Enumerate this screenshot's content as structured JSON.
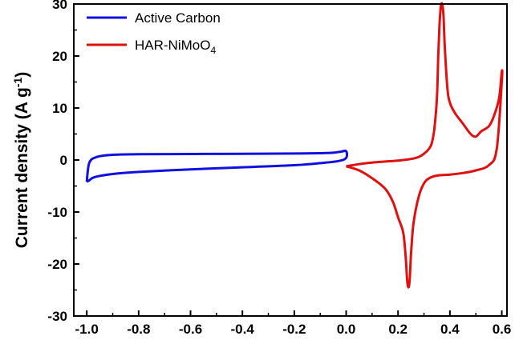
{
  "chart_data": {
    "type": "line",
    "xlabel": "",
    "ylabel": {
      "prefix": "Current density (A g",
      "superscript": "-1",
      "suffix": ")"
    },
    "xlim": [
      -1.05,
      0.62
    ],
    "ylim": [
      -30,
      30
    ],
    "x_ticks": [
      -1.0,
      -0.8,
      -0.6,
      -0.4,
      -0.2,
      0.0,
      0.2,
      0.4,
      0.6
    ],
    "x_tick_labels": [
      "-1.0",
      "-0.8",
      "-0.6",
      "-0.4",
      "-0.2",
      "0.0",
      "0.2",
      "0.4",
      "0.6"
    ],
    "y_ticks": [
      -30,
      -20,
      -10,
      0,
      10,
      20,
      30
    ],
    "y_tick_labels": [
      "-30",
      "-20",
      "-10",
      "0",
      "10",
      "20",
      "30"
    ],
    "grid": false,
    "legend_position": "top-left",
    "series": [
      {
        "name": "Active Carbon",
        "color": "#1010e0",
        "x": [
          -1.0,
          -0.99,
          -0.97,
          -0.9,
          -0.8,
          -0.6,
          -0.4,
          -0.2,
          -0.1,
          -0.03,
          0.0,
          0.0,
          -0.02,
          -0.05,
          -0.1,
          -0.2,
          -0.4,
          -0.6,
          -0.8,
          -0.9,
          -0.96,
          -0.99,
          -1.0
        ],
        "y": [
          -4.2,
          -3.9,
          -3.3,
          -2.7,
          -2.3,
          -1.8,
          -1.4,
          -1.0,
          -0.6,
          -0.2,
          0.4,
          1.7,
          1.6,
          1.4,
          1.3,
          1.25,
          1.2,
          1.15,
          1.1,
          1.0,
          0.6,
          -0.5,
          -4.2
        ]
      },
      {
        "name": {
          "main": "HAR-NiMoO",
          "sub": "4"
        },
        "color": "#e01010",
        "x": [
          0.0,
          0.05,
          0.1,
          0.15,
          0.2,
          0.25,
          0.28,
          0.3,
          0.32,
          0.33,
          0.34,
          0.35,
          0.355,
          0.36,
          0.365,
          0.37,
          0.375,
          0.38,
          0.39,
          0.4,
          0.42,
          0.45,
          0.48,
          0.5,
          0.52,
          0.55,
          0.57,
          0.59,
          0.6,
          0.6,
          0.58,
          0.55,
          0.5,
          0.45,
          0.4,
          0.35,
          0.32,
          0.3,
          0.28,
          0.26,
          0.25,
          0.245,
          0.24,
          0.235,
          0.23,
          0.22,
          0.2,
          0.18,
          0.15,
          0.1,
          0.05,
          0.0
        ],
        "y": [
          -1.2,
          -0.8,
          -0.5,
          -0.3,
          -0.1,
          0.2,
          0.6,
          1.2,
          2.2,
          3.2,
          6.0,
          12.0,
          20.0,
          26.0,
          29.5,
          30.0,
          28.0,
          22.0,
          14.0,
          11.0,
          9.0,
          7.0,
          5.0,
          4.5,
          5.5,
          6.5,
          8.5,
          12.0,
          17.0,
          15.0,
          2.0,
          -1.0,
          -2.0,
          -2.5,
          -2.8,
          -3.0,
          -3.5,
          -4.5,
          -7.0,
          -12.0,
          -18.0,
          -23.0,
          -24.5,
          -23.0,
          -19.0,
          -14.0,
          -11.0,
          -8.0,
          -5.5,
          -3.5,
          -2.0,
          -1.2
        ]
      }
    ]
  }
}
